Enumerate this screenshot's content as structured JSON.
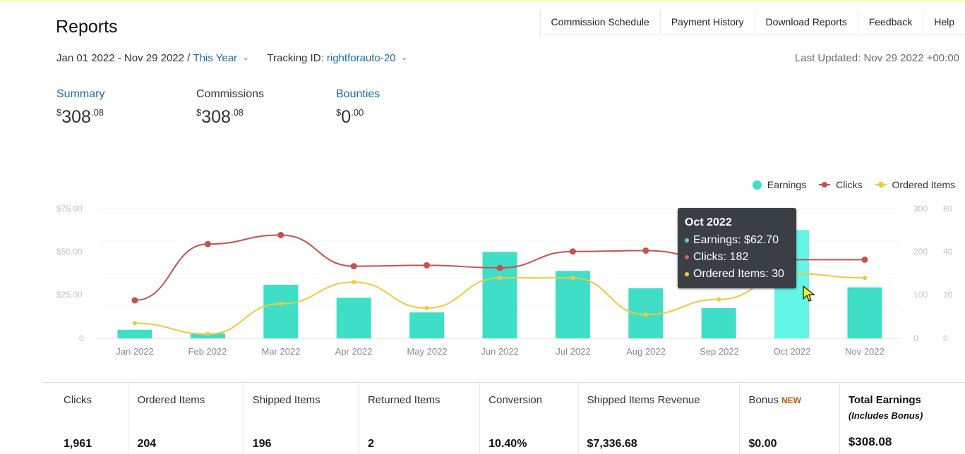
{
  "header": {
    "title": "Reports",
    "nav": [
      "Commission Schedule",
      "Payment History",
      "Download Reports",
      "Feedback",
      "Help"
    ]
  },
  "filters": {
    "date_range": "Jan 01 2022 - Nov 29 2022 /",
    "period": "This Year",
    "tracking_label": "Tracking ID:",
    "tracking_id": "rightforauto-20",
    "last_updated": "Last Updated: Nov 29 2022 +00:00"
  },
  "summary": [
    {
      "label": "Summary",
      "currency": "$",
      "whole": "308",
      "cents": ".08"
    },
    {
      "label": "Commissions",
      "currency": "$",
      "whole": "308",
      "cents": ".08"
    },
    {
      "label": "Bounties",
      "currency": "$",
      "whole": "0",
      "cents": ".00"
    }
  ],
  "legend": [
    "Earnings",
    "Clicks",
    "Ordered Items"
  ],
  "colors": {
    "earnings": "#3fdec7",
    "earnings_highlight": "#63f5e6",
    "clicks": "#c8514f",
    "ordered": "#f0c93a",
    "link": "#1a6aa8"
  },
  "chart_data": {
    "type": "bar",
    "categories": [
      "Jan 2022",
      "Feb 2022",
      "Mar 2022",
      "Apr 2022",
      "May 2022",
      "Jun 2022",
      "Jul 2022",
      "Aug 2022",
      "Sep 2022",
      "Oct 2022",
      "Nov 2022"
    ],
    "series": [
      {
        "name": "Earnings",
        "type": "bar",
        "axis": "left",
        "values": [
          5,
          3,
          31,
          23.5,
          15,
          50,
          39,
          29,
          17.5,
          62.7,
          29.5
        ]
      },
      {
        "name": "Clicks",
        "type": "line",
        "axis": "right",
        "values": [
          88,
          218,
          239,
          167,
          169,
          163,
          201,
          203,
          182,
          182,
          182
        ]
      },
      {
        "name": "Ordered Items",
        "type": "line",
        "axis": "right2",
        "values": [
          7,
          2,
          16,
          26,
          14,
          28,
          28,
          11,
          18,
          30,
          28
        ]
      }
    ],
    "y_left": {
      "ticks": [
        "$75.00",
        "$50.00",
        "$25.00",
        "0"
      ],
      "range": [
        0,
        75
      ]
    },
    "y_right": {
      "ticks": [
        "300",
        "200",
        "100",
        "0"
      ],
      "range": [
        0,
        300
      ]
    },
    "y_right2": {
      "ticks": [
        "60",
        "40",
        "20",
        "0"
      ],
      "range": [
        0,
        60
      ]
    },
    "highlighted_index": 9
  },
  "tooltip": {
    "title": "Oct 2022",
    "rows": [
      "Earnings: $62.70",
      "Clicks: 182",
      "Ordered Items: 30"
    ]
  },
  "stats": [
    {
      "label": "Clicks",
      "value": "1,961"
    },
    {
      "label": "Ordered Items",
      "value": "204"
    },
    {
      "label": "Shipped Items",
      "value": "196"
    },
    {
      "label": "Returned Items",
      "value": "2"
    },
    {
      "label": "Conversion",
      "value": "10.40%"
    },
    {
      "label": "Shipped Items Revenue",
      "value": "$7,336.68"
    },
    {
      "label": "Bonus",
      "badge": "NEW",
      "value": "$0.00"
    },
    {
      "label": "Total Earnings",
      "sub": "(Includes Bonus)",
      "value": "$308.08"
    }
  ]
}
